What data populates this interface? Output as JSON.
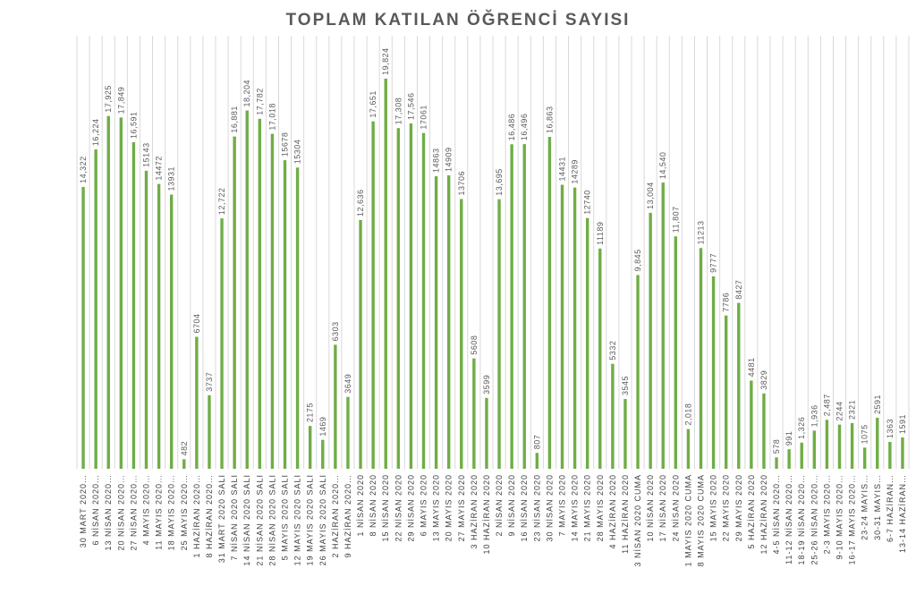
{
  "chart_data": {
    "type": "bar",
    "title": "TOPLAM KATILAN ÖĞRENCİ SAYISI",
    "xlabel": "",
    "ylabel": "",
    "ylim": [
      0,
      22000
    ],
    "grid": "vertical",
    "legend": "none",
    "bar_color": "#70ad47",
    "categories": [
      "30 MART 2020…",
      "6 NİSAN 2020…",
      "13 NİSAN 2020…",
      "20 NİSAN 2020…",
      "27 NİSAN 2020…",
      "4 MAYIS 2020…",
      "11 MAYIS 2020…",
      "18 MAYIS 2020…",
      "25 MAYIS 2020…",
      "1 HAZİRAN 2020…",
      "8 HAZİRAN 2020…",
      "31 MART 2020 SALI",
      "7 NİSAN 2020 SALI",
      "14 NİSAN 2020 SALI",
      "21 NİSAN 2020 SALI",
      "28 NİSAN 2020 SALI",
      "5 MAYIS 2020 SALI",
      "12 MAYIS 2020 SALI",
      "19 MAYIS 2020 SALI",
      "26 MAYIS 2020 SALI",
      "2 HAZİRAN 2020…",
      "9 HAZİRAN 2020…",
      "1 NİSAN 2020",
      "8 NİSAN 2020",
      "15 NİSAN 2020",
      "22 NİSAN 2020",
      "29 NİSAN 2020",
      "6 MAYIS 2020",
      "13 MAYIS 2020",
      "20 MAYIS 2020",
      "27 MAYIS 2020",
      "3 HAZİRAN 2020",
      "10 HAZİRAN 2020",
      "2 NİSAN 2020",
      "9 NİSAN 2020",
      "16 NİSAN 2020",
      "23 NİSAN 2020",
      "30 NİSAN 2020",
      "7 MAYIS 2020",
      "14 MAYIS 2020",
      "21 MAYIS 2020",
      "28 MAYIS 2020",
      "4 HAZİRAN 2020",
      "11 HAZİRAN 2020",
      "3 NİSAN 2020 CUMA",
      "10 NİSAN 2020",
      "17 NİSAN 2020",
      "24 NİSAN 2020",
      "1 MAYIS 2020 CUMA",
      "8 MAYIS 2020 CUMA",
      "15 MAYIS 2020",
      "22 MAYIS 2020",
      "29 MAYIS 2020",
      "5 HAZİRAN 2020",
      "12 HAZİRAN 2020",
      "4-5 NİSAN 2020…",
      "11-12 NİSAN 2020…",
      "18-19 NİSAN 2020…",
      "25-26 NİSAN 2020…",
      "2-3 MAYIS 2020…",
      "9-10 MAYIS 2020…",
      "16-17 MAYIS 2020…",
      "23-24 MAYIS…",
      "30-31 MAYIS…",
      "6-7 HAZİRAN…",
      "13-14 HAZİRAN…"
    ],
    "values": [
      14322,
      16224,
      17925,
      17849,
      16591,
      15143,
      14472,
      13931,
      482,
      6704,
      3737,
      12722,
      16881,
      18204,
      17782,
      17018,
      15678,
      15304,
      2175,
      1469,
      6303,
      3649,
      12636,
      17651,
      19824,
      17308,
      17546,
      17061,
      14863,
      14909,
      13706,
      5608,
      3599,
      13695,
      16486,
      16496,
      807,
      16863,
      14431,
      14289,
      12740,
      11189,
      5332,
      3545,
      9845,
      13004,
      14540,
      11807,
      2018,
      11213,
      9777,
      7786,
      8427,
      4481,
      3829,
      578,
      991,
      1326,
      1936,
      2487,
      2244,
      2321,
      1075,
      2591,
      1363,
      1591
    ],
    "data_labels": [
      "14,322",
      "16,224",
      "17,925",
      "17,849",
      "16,591",
      "15143",
      "14472",
      "13931",
      "482",
      "6704",
      "3737",
      "12,722",
      "16,881",
      "18,204",
      "17,782",
      "17,018",
      "15678",
      "15304",
      "2175",
      "1469",
      "6303",
      "3649",
      "12,636",
      "17,651",
      "19,824",
      "17,308",
      "17,546",
      "17061",
      "14863",
      "14909",
      "13706",
      "5608",
      "3599",
      "13,695",
      "16,486",
      "16,496",
      "807",
      "16,863",
      "14431",
      "14289",
      "12740",
      "11189",
      "5332",
      "3545",
      "9,845",
      "13,004",
      "14,540",
      "11,807",
      "2,018",
      "11213",
      "9777",
      "7786",
      "8427",
      "4481",
      "3829",
      "578",
      "991",
      "1,326",
      "1,936",
      "2,487",
      "2244",
      "2321",
      "1075",
      "2591",
      "1363",
      "1591"
    ]
  }
}
